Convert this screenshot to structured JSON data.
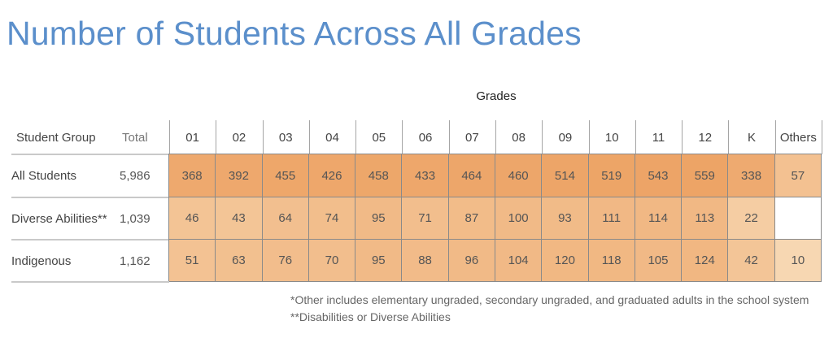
{
  "chart_data": {
    "type": "heatmap",
    "title": "Number of Students Across All Grades",
    "column_group_label": "Grades",
    "row_header": "Student Group",
    "total_header": "Total",
    "columns": [
      "01",
      "02",
      "03",
      "04",
      "05",
      "06",
      "07",
      "08",
      "09",
      "10",
      "11",
      "12",
      "K",
      "Others"
    ],
    "rows": [
      {
        "group": "All Students",
        "total": "5,986",
        "values": [
          368,
          392,
          455,
          426,
          458,
          433,
          464,
          460,
          514,
          519,
          543,
          559,
          338,
          57
        ]
      },
      {
        "group": "Diverse Abilities**",
        "total": "1,039",
        "values": [
          46,
          43,
          64,
          74,
          95,
          71,
          87,
          100,
          93,
          111,
          114,
          113,
          22,
          null
        ]
      },
      {
        "group": "Indigenous",
        "total": "1,162",
        "values": [
          51,
          63,
          76,
          70,
          95,
          88,
          96,
          104,
          120,
          118,
          105,
          124,
          42,
          10
        ]
      }
    ],
    "color_low": "#f7d7b2",
    "color_high": "#eda466"
  },
  "footnotes": [
    "*Other includes elementary ungraded, secondary ungraded, and graduated adults in the school system",
    "**Disabilities or Diverse Abilities"
  ]
}
